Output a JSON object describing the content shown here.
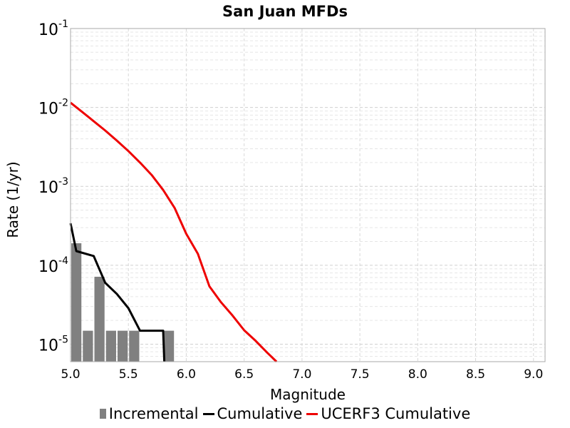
{
  "chart_data": {
    "type": "bar+line",
    "title": "San Juan MFDs",
    "xlabel": "Magnitude",
    "ylabel": "Rate (1/yr)",
    "xlim": [
      5.0,
      9.1
    ],
    "ylim": [
      6e-06,
      0.1
    ],
    "yscale": "log",
    "grid": true,
    "legend_position": "bottom",
    "x_ticks": [
      "5.0",
      "5.5",
      "6.0",
      "6.5",
      "7.0",
      "7.5",
      "8.0",
      "8.5",
      "9.0"
    ],
    "y_ticks": [
      {
        "base": "10",
        "exp": "-1",
        "value": 0.1
      },
      {
        "base": "10",
        "exp": "-2",
        "value": 0.01
      },
      {
        "base": "10",
        "exp": "-3",
        "value": 0.001
      },
      {
        "base": "10",
        "exp": "-4",
        "value": 0.0001
      },
      {
        "base": "10",
        "exp": "-5",
        "value": 1e-05
      }
    ],
    "series": [
      {
        "name": "Incremental",
        "kind": "bar",
        "color": "#808080",
        "x": [
          5.0,
          5.1,
          5.2,
          5.3,
          5.4,
          5.5,
          5.6,
          5.7,
          5.8
        ],
        "y": [
          0.00019,
          1.48e-05,
          7.15e-05,
          1.48e-05,
          1.48e-05,
          1.48e-05,
          0,
          0,
          1.48e-05
        ]
      },
      {
        "name": "Cumulative",
        "kind": "line",
        "color": "#000000",
        "x": [
          5.0,
          5.05,
          5.2,
          5.3,
          5.4,
          5.5,
          5.6,
          5.7,
          5.8,
          5.81
        ],
        "y": [
          0.00034,
          0.000151,
          0.000131,
          5.98e-05,
          4.33e-05,
          2.86e-05,
          1.48e-05,
          1.48e-05,
          1.48e-05,
          6e-06
        ]
      },
      {
        "name": "UCERF3 Cumulative",
        "kind": "line",
        "color": "#ee0000",
        "x": [
          5.0,
          5.1,
          5.2,
          5.3,
          5.4,
          5.5,
          5.6,
          5.7,
          5.8,
          5.9,
          6.0,
          6.1,
          6.2,
          6.3,
          6.4,
          6.5,
          6.6,
          6.7,
          6.78
        ],
        "y": [
          0.0115,
          0.0088,
          0.0067,
          0.0051,
          0.0038,
          0.0028,
          0.002,
          0.0014,
          0.0009,
          0.00053,
          0.00025,
          0.00014,
          5.4e-05,
          3.4e-05,
          2.3e-05,
          1.5e-05,
          1.1e-05,
          7.8e-06,
          6e-06
        ]
      }
    ]
  }
}
